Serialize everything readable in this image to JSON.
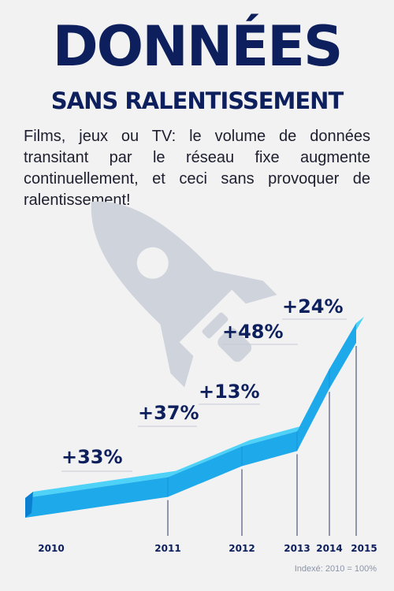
{
  "header": {
    "title": "DONNÉES",
    "subtitle": "SANS RALENTISSEMENT",
    "intro": "Films, jeux ou TV: le volume de données transitant par le réseau fixe augmente continuellement, et ceci sans provoquer de ralentissement!"
  },
  "icons": {
    "decoration": "rocket-icon"
  },
  "colors": {
    "title": "#0d1f5c",
    "arrow_top": "#4fd2f8",
    "arrow_front": "#1ea9ea",
    "arrow_dark": "#0b7fd0",
    "rocket": "#cfd3dc",
    "background": "#f2f2f2"
  },
  "chart_data": {
    "type": "line",
    "title": "",
    "xlabel": "",
    "ylabel": "",
    "categories": [
      "2010",
      "2011",
      "2012",
      "2013",
      "2014",
      "2015"
    ],
    "growth_labels": [
      "+33%",
      "+37%",
      "+13%",
      "+48%",
      "+24%"
    ],
    "series": [
      {
        "values": [
          100,
          133,
          182,
          206,
          305,
          378
        ]
      }
    ],
    "note": "Indexé: 2010 = 100%",
    "grid": false,
    "legend": "none"
  }
}
